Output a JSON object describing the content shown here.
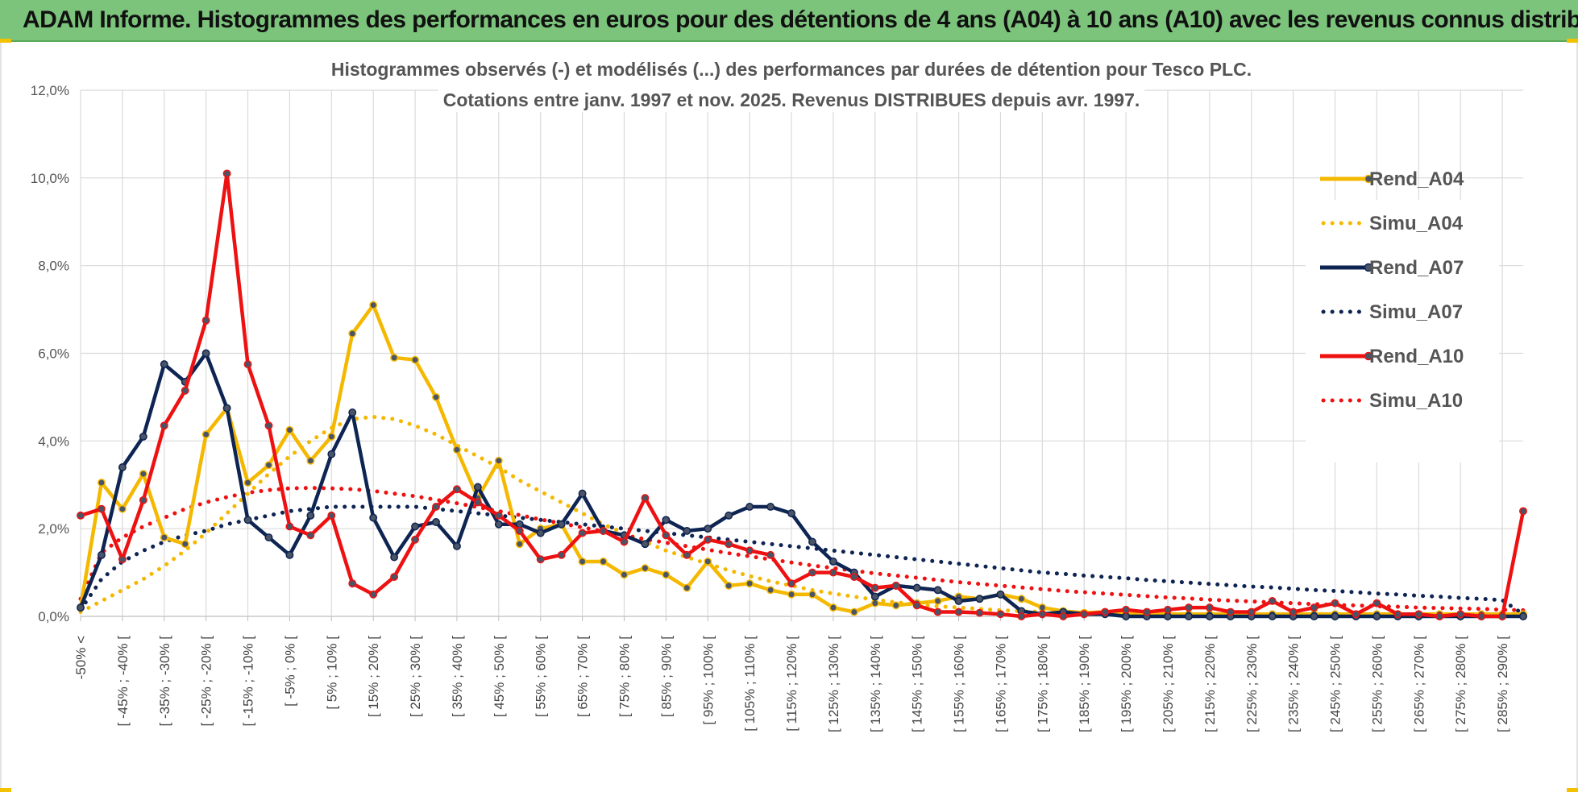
{
  "header": {
    "title": "ADAM Informe. Histogrammes des performances en euros pour des détentions de 4 ans (A04) à 10 ans (A10) avec les revenus connus distribués"
  },
  "chart_data": {
    "type": "line",
    "title_line1": "Histogrammes observés (-) et modélisés (...)  des performances par durées de détention pour Tesco PLC.",
    "title_line2": "Cotations entre janv. 1997 et nov. 2025. Revenus DISTRIBUES depuis avr. 1997.",
    "ylim": [
      0,
      12
    ],
    "yticks": [
      "0,0%",
      "2,0%",
      "4,0%",
      "6,0%",
      "8,0%",
      "10,0%",
      "12,0%"
    ],
    "xticks": [
      "-50% <",
      "[ -45% ; -40% [",
      "[ -35% ; -30% [",
      "[ -25% ; -20% [",
      "[ -15% ; -10% [",
      "[ -5% ; 0% [",
      "[ 5% ; 10% [",
      "[ 15% ; 20% [",
      "[ 25% ; 30% [",
      "[ 35% ; 40% [",
      "[ 45% ; 50% [",
      "[ 55% ; 60% [",
      "[ 65% ; 70% [",
      "[ 75% ; 80% [",
      "[ 85% ; 90% [",
      "[ 95% ; 100% [",
      "[ 105% ; 110% [",
      "[ 115% ; 120% [",
      "[ 125% ; 130% [",
      "[ 135% ; 140% [",
      "[ 145% ; 150% [",
      "[ 155% ; 160% [",
      "[ 165% ; 170% [",
      "[ 175% ; 180% [",
      "[ 185% ; 190% [",
      "[ 195% ; 200% [",
      "[ 205% ; 210% [",
      "[ 215% ; 220% [",
      "[ 225% ; 230% [",
      "[ 235% ; 240% [",
      "[ 245% ; 250% [",
      "[ 255% ; 260% [",
      "[ 265% ; 270% [",
      "[ 275% ; 280% [",
      "[ 285% ; 290% ["
    ],
    "n_categories": 70,
    "series": [
      {
        "name": "Rend_A04",
        "style": "solid",
        "color": "#f5b800",
        "values": [
          0.2,
          3.05,
          2.45,
          3.25,
          1.8,
          1.65,
          4.15,
          4.75,
          3.05,
          3.45,
          4.25,
          3.55,
          4.1,
          6.45,
          7.1,
          5.9,
          5.85,
          5.0,
          3.8,
          2.7,
          3.55,
          1.65,
          2.0,
          2.1,
          1.25,
          1.25,
          0.95,
          1.1,
          0.95,
          0.65,
          1.25,
          0.7,
          0.75,
          0.6,
          0.5,
          0.5,
          0.2,
          0.1,
          0.3,
          0.25,
          0.3,
          0.35,
          0.45,
          0.4,
          0.5,
          0.4,
          0.2,
          0.12,
          0.08,
          0.1,
          0.05,
          0.05,
          0.05,
          0.05,
          0.05,
          0.05,
          0.05,
          0.05,
          0.05,
          0.05,
          0.05,
          0.05,
          0.05,
          0.05,
          0.05,
          0.05,
          0.05,
          0.05,
          0.05,
          0.05
        ]
      },
      {
        "name": "Simu_A04",
        "style": "dotted",
        "color": "#f5b800",
        "values": [
          0.1,
          0.35,
          0.6,
          0.85,
          1.15,
          1.5,
          1.9,
          2.35,
          2.8,
          3.25,
          3.65,
          4.0,
          4.3,
          4.5,
          4.55,
          4.5,
          4.35,
          4.15,
          3.9,
          3.65,
          3.4,
          3.1,
          2.85,
          2.6,
          2.35,
          2.1,
          1.9,
          1.7,
          1.5,
          1.35,
          1.2,
          1.05,
          0.92,
          0.8,
          0.7,
          0.6,
          0.52,
          0.45,
          0.38,
          0.32,
          0.27,
          0.23,
          0.2,
          0.17,
          0.14,
          0.12,
          0.1,
          0.08,
          0.07,
          0.06,
          0.05,
          0.04,
          0.04,
          0.03,
          0.03,
          0.02,
          0.02,
          0.02,
          0.01,
          0.01,
          0.01,
          0.01,
          0.01,
          0.01,
          0.01,
          0.01,
          0.01,
          0.01,
          0.01,
          0.01
        ]
      },
      {
        "name": "Rend_A07",
        "style": "solid",
        "color": "#0e2452",
        "values": [
          0.2,
          1.4,
          3.4,
          4.1,
          5.75,
          5.35,
          6.0,
          4.75,
          2.2,
          1.8,
          1.4,
          2.3,
          3.7,
          4.65,
          2.25,
          1.35,
          2.05,
          2.15,
          1.6,
          2.95,
          2.1,
          2.1,
          1.9,
          2.1,
          2.8,
          1.95,
          1.85,
          1.65,
          2.2,
          1.95,
          2.0,
          2.3,
          2.5,
          2.5,
          2.35,
          1.7,
          1.25,
          1.0,
          0.45,
          0.7,
          0.65,
          0.6,
          0.35,
          0.4,
          0.5,
          0.12,
          0.05,
          0.1,
          0.05,
          0.05,
          0.0,
          0.0,
          0.0,
          0.0,
          0.0,
          0.0,
          0.0,
          0.0,
          0.0,
          0.0,
          0.0,
          0.0,
          0.0,
          0.0,
          0.0,
          0.0,
          0.0,
          0.0,
          0.0,
          0.0
        ]
      },
      {
        "name": "Simu_A07",
        "style": "dotted",
        "color": "#0e2452",
        "values": [
          0.15,
          0.85,
          1.25,
          1.5,
          1.7,
          1.85,
          1.95,
          2.1,
          2.2,
          2.3,
          2.4,
          2.45,
          2.5,
          2.5,
          2.5,
          2.5,
          2.5,
          2.45,
          2.4,
          2.35,
          2.3,
          2.25,
          2.2,
          2.15,
          2.1,
          2.05,
          2.0,
          1.95,
          1.9,
          1.85,
          1.8,
          1.75,
          1.7,
          1.65,
          1.6,
          1.55,
          1.5,
          1.45,
          1.4,
          1.35,
          1.3,
          1.25,
          1.2,
          1.15,
          1.1,
          1.05,
          1.0,
          0.97,
          0.93,
          0.9,
          0.87,
          0.83,
          0.8,
          0.77,
          0.74,
          0.71,
          0.68,
          0.66,
          0.63,
          0.6,
          0.58,
          0.55,
          0.52,
          0.5,
          0.47,
          0.45,
          0.42,
          0.4,
          0.37,
          0.05
        ]
      },
      {
        "name": "Rend_A10",
        "style": "solid",
        "color": "#ee1111",
        "values": [
          2.3,
          2.45,
          1.3,
          2.65,
          4.35,
          5.15,
          6.75,
          10.1,
          5.75,
          4.35,
          2.05,
          1.85,
          2.3,
          0.75,
          0.5,
          0.9,
          1.75,
          2.5,
          2.9,
          2.6,
          2.3,
          1.95,
          1.3,
          1.4,
          1.9,
          1.95,
          1.7,
          2.7,
          1.85,
          1.4,
          1.75,
          1.65,
          1.5,
          1.4,
          0.75,
          1.0,
          1.0,
          0.9,
          0.65,
          0.7,
          0.25,
          0.1,
          0.1,
          0.08,
          0.05,
          0.0,
          0.05,
          0.0,
          0.05,
          0.1,
          0.15,
          0.1,
          0.15,
          0.2,
          0.2,
          0.1,
          0.1,
          0.35,
          0.1,
          0.2,
          0.3,
          0.05,
          0.3,
          0.05,
          0.05,
          0.0,
          0.05,
          0.0,
          0.0,
          2.4
        ]
      },
      {
        "name": "Simu_A10",
        "style": "dotted",
        "color": "#ee1111",
        "values": [
          0.4,
          1.45,
          1.8,
          2.05,
          2.25,
          2.45,
          2.6,
          2.72,
          2.82,
          2.88,
          2.92,
          2.93,
          2.92,
          2.9,
          2.86,
          2.8,
          2.74,
          2.66,
          2.58,
          2.49,
          2.4,
          2.31,
          2.21,
          2.12,
          2.03,
          1.94,
          1.85,
          1.76,
          1.68,
          1.6,
          1.52,
          1.44,
          1.37,
          1.3,
          1.23,
          1.16,
          1.1,
          1.04,
          0.98,
          0.93,
          0.88,
          0.83,
          0.78,
          0.74,
          0.7,
          0.66,
          0.62,
          0.58,
          0.55,
          0.52,
          0.49,
          0.46,
          0.43,
          0.41,
          0.38,
          0.36,
          0.34,
          0.32,
          0.3,
          0.28,
          0.26,
          0.25,
          0.23,
          0.22,
          0.2,
          0.19,
          0.18,
          0.17,
          0.15,
          0.14
        ]
      }
    ]
  }
}
